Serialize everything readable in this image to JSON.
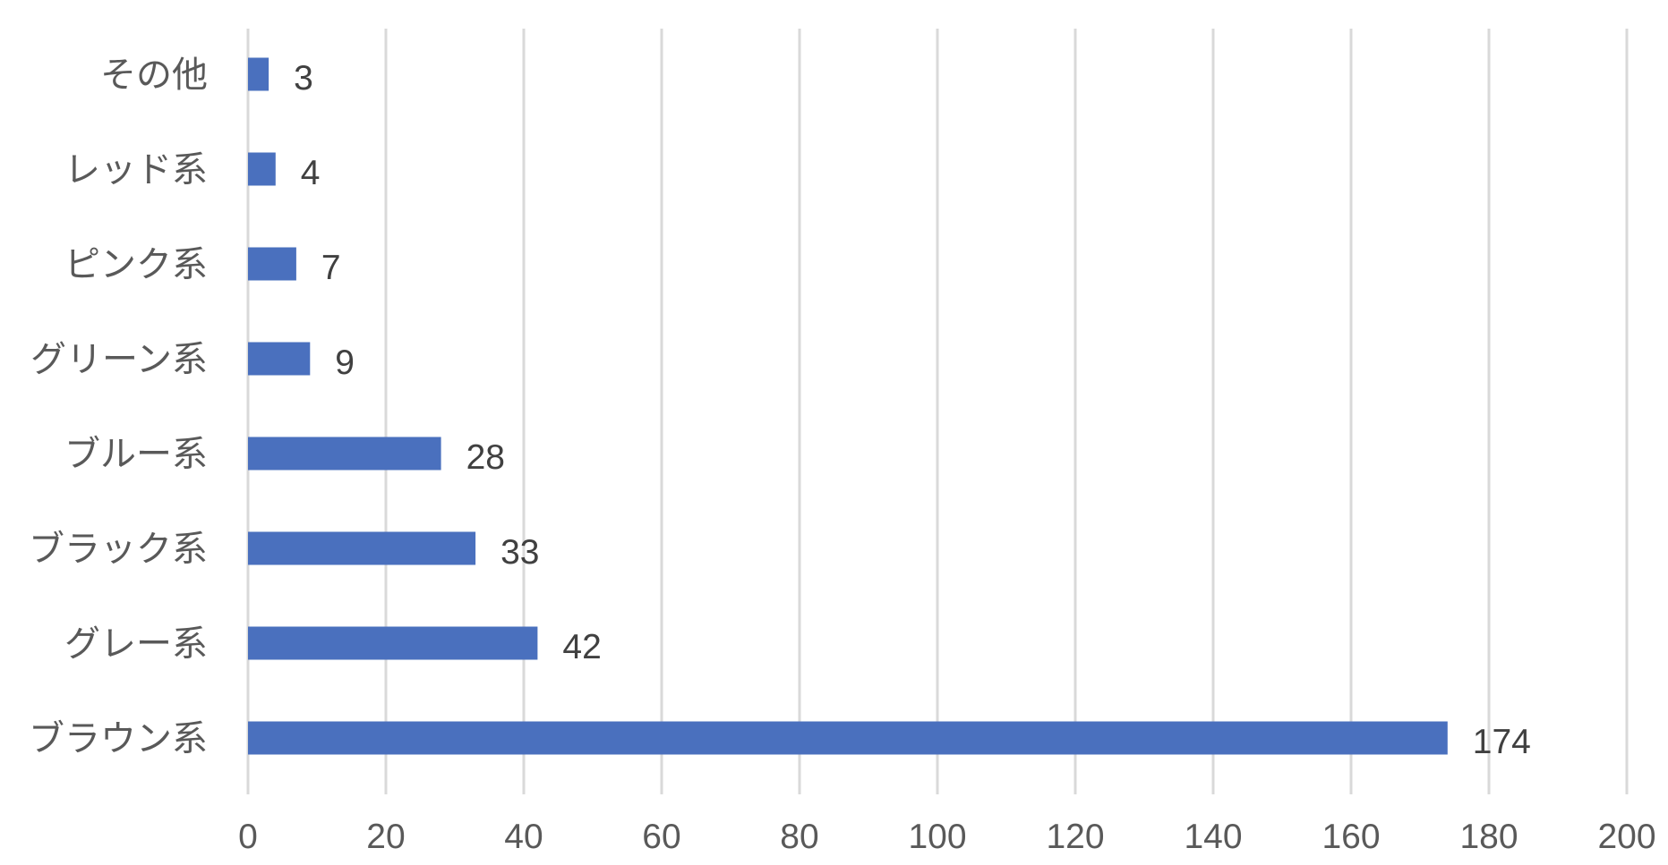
{
  "chart_data": {
    "type": "bar",
    "orientation": "horizontal",
    "categories": [
      "その他",
      "レッド系",
      "ピンク系",
      "グリーン系",
      "ブルー系",
      "ブラック系",
      "グレー系",
      "ブラウン系"
    ],
    "values": [
      3,
      4,
      7,
      9,
      28,
      33,
      42,
      174
    ],
    "xlim": [
      0,
      200
    ],
    "xticks": [
      0,
      20,
      40,
      60,
      80,
      100,
      120,
      140,
      160,
      180,
      200
    ],
    "grid": true,
    "data_labels": true,
    "title": "",
    "xlabel": "",
    "ylabel": "",
    "colors": {
      "bar": "#4a70be",
      "grid": "#d9d9d9",
      "text": "#595959"
    }
  }
}
